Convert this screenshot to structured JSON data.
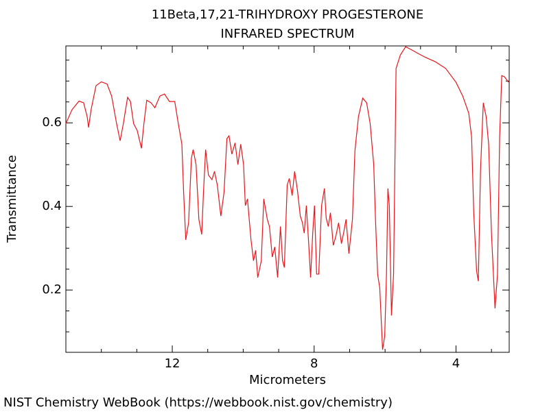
{
  "chart_data": {
    "type": "line",
    "title": "11Beta,17,21-TRIHYDROXY PROGESTERONE",
    "subtitle": "INFRARED SPECTRUM",
    "x_label": "Micrometers",
    "y_label": "Transmittance",
    "xlim": [
      15,
      2.5
    ],
    "ylim": [
      0.051,
      0.784
    ],
    "xticks": [
      12,
      8,
      4
    ],
    "yticks": [
      0.2,
      0.4,
      0.6
    ],
    "xminorticks": [
      15,
      14,
      13,
      11,
      10,
      9,
      7,
      6,
      5,
      3
    ],
    "yminorticks": [
      0.1,
      0.15,
      0.25,
      0.3,
      0.35,
      0.45,
      0.5,
      0.55,
      0.65,
      0.7,
      0.75
    ],
    "series": [
      {
        "color": "#e8141a",
        "x": [
          15.0,
          14.83,
          14.63,
          14.5,
          14.4,
          14.36,
          14.29,
          14.15,
          14.0,
          13.84,
          13.71,
          13.57,
          13.47,
          13.38,
          13.26,
          13.18,
          13.09,
          12.99,
          12.87,
          12.8,
          12.72,
          12.6,
          12.49,
          12.35,
          12.22,
          12.08,
          11.93,
          11.83,
          11.73,
          11.68,
          11.62,
          11.54,
          11.46,
          11.41,
          11.33,
          11.25,
          11.17,
          11.12,
          11.06,
          10.98,
          10.88,
          10.81,
          10.73,
          10.63,
          10.54,
          10.46,
          10.4,
          10.32,
          10.23,
          10.15,
          10.07,
          9.99,
          9.94,
          9.88,
          9.78,
          9.71,
          9.65,
          9.59,
          9.49,
          9.42,
          9.32,
          9.26,
          9.18,
          9.11,
          9.03,
          8.95,
          8.89,
          8.84,
          8.76,
          8.7,
          8.62,
          8.55,
          8.47,
          8.39,
          8.33,
          8.28,
          8.22,
          8.16,
          8.1,
          8.04,
          7.99,
          7.93,
          7.87,
          7.79,
          7.71,
          7.66,
          7.6,
          7.54,
          7.46,
          7.39,
          7.31,
          7.23,
          7.17,
          7.1,
          7.02,
          6.96,
          6.92,
          6.85,
          6.75,
          6.63,
          6.52,
          6.42,
          6.32,
          6.27,
          6.21,
          6.15,
          6.07,
          6.01,
          5.96,
          5.92,
          5.88,
          5.82,
          5.76,
          5.69,
          5.57,
          5.42,
          5.26,
          5.07,
          4.87,
          4.58,
          4.29,
          4.0,
          3.81,
          3.64,
          3.56,
          3.5,
          3.42,
          3.37,
          3.31,
          3.23,
          3.15,
          3.08,
          3.0,
          2.9,
          2.83,
          2.77,
          2.71,
          2.63,
          2.52
        ],
        "values": [
          0.598,
          0.631,
          0.652,
          0.648,
          0.615,
          0.589,
          0.631,
          0.689,
          0.698,
          0.693,
          0.664,
          0.598,
          0.557,
          0.598,
          0.661,
          0.651,
          0.598,
          0.582,
          0.539,
          0.598,
          0.654,
          0.648,
          0.636,
          0.664,
          0.669,
          0.651,
          0.651,
          0.598,
          0.549,
          0.434,
          0.32,
          0.361,
          0.516,
          0.536,
          0.5,
          0.369,
          0.333,
          0.434,
          0.536,
          0.475,
          0.464,
          0.484,
          0.451,
          0.377,
          0.434,
          0.562,
          0.569,
          0.525,
          0.552,
          0.5,
          0.549,
          0.5,
          0.402,
          0.418,
          0.32,
          0.27,
          0.295,
          0.23,
          0.27,
          0.418,
          0.369,
          0.352,
          0.279,
          0.303,
          0.23,
          0.352,
          0.27,
          0.254,
          0.451,
          0.467,
          0.426,
          0.484,
          0.438,
          0.377,
          0.361,
          0.336,
          0.402,
          0.32,
          0.23,
          0.336,
          0.402,
          0.238,
          0.238,
          0.402,
          0.443,
          0.372,
          0.352,
          0.385,
          0.307,
          0.328,
          0.361,
          0.311,
          0.336,
          0.369,
          0.287,
          0.336,
          0.369,
          0.533,
          0.615,
          0.659,
          0.648,
          0.598,
          0.5,
          0.369,
          0.238,
          0.205,
          0.057,
          0.09,
          0.238,
          0.443,
          0.402,
          0.139,
          0.238,
          0.73,
          0.762,
          0.782,
          0.775,
          0.766,
          0.757,
          0.746,
          0.73,
          0.697,
          0.664,
          0.623,
          0.566,
          0.385,
          0.246,
          0.221,
          0.484,
          0.648,
          0.615,
          0.549,
          0.336,
          0.156,
          0.238,
          0.566,
          0.713,
          0.71,
          0.697
        ]
      }
    ]
  },
  "footer": "NIST Chemistry WebBook (https://webbook.nist.gov/chemistry)"
}
